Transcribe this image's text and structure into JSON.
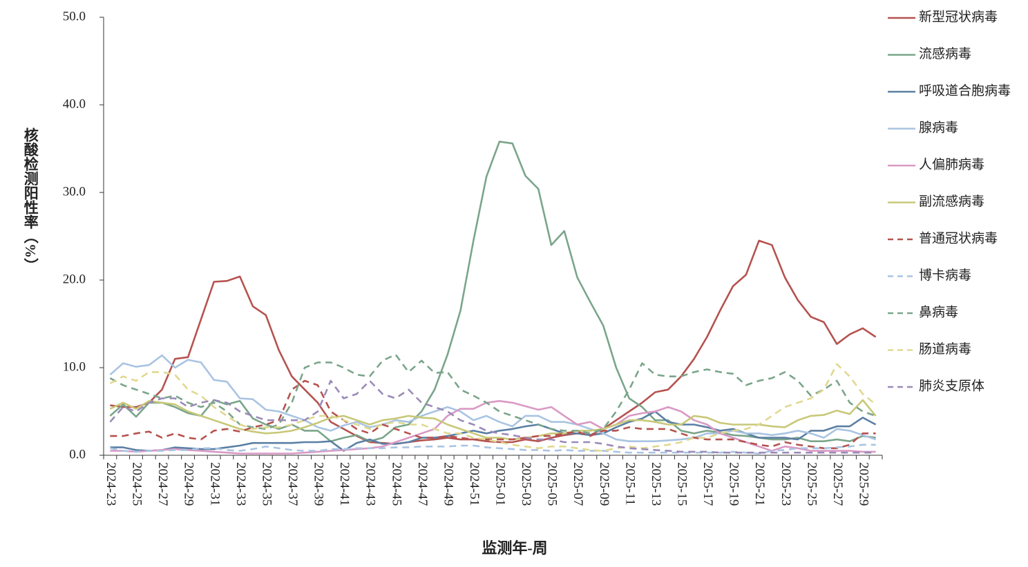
{
  "chart_data": {
    "type": "line",
    "x_label": "监测年-周",
    "y_label": "核酸检测阳性率（%）",
    "categories": [
      "2024-23",
      null,
      "2024-25",
      null,
      "2024-27",
      null,
      "2024-29",
      null,
      "2024-31",
      null,
      "2024-33",
      null,
      "2024-35",
      null,
      "2024-37",
      null,
      "2024-39",
      null,
      "2024-41",
      null,
      "2024-43",
      null,
      "2024-45",
      null,
      "2024-47",
      null,
      "2024-49",
      null,
      "2024-51",
      null,
      "2025-01",
      null,
      "2025-03",
      null,
      "2025-05",
      null,
      "2025-07",
      null,
      "2025-09",
      null,
      "2025-11",
      null,
      "2025-13",
      null,
      "2025-15",
      null,
      "2025-17",
      null,
      "2025-19",
      null,
      "2025-21",
      null,
      "2025-23",
      null,
      "2025-25",
      null,
      "2025-27",
      null,
      "2025-29",
      null
    ],
    "ylim": [
      0,
      50
    ],
    "yticks": [
      {
        "value": 0,
        "label": "0.0"
      },
      {
        "value": 10,
        "label": "10.0"
      },
      {
        "value": 20,
        "label": "20.0"
      },
      {
        "value": 30,
        "label": "30.0"
      },
      {
        "value": 40,
        "label": "40.0"
      },
      {
        "value": 50,
        "label": "50.0"
      }
    ],
    "grid": false,
    "legend": "right",
    "series": [
      {
        "name": "新型冠状病毒",
        "color": "#b5524f",
        "dashed": false,
        "values": [
          5.7,
          5.5,
          5.5,
          6.0,
          7.5,
          11.0,
          11.2,
          15.5,
          19.8,
          19.9,
          20.4,
          17.0,
          16.0,
          12.0,
          9.0,
          7.5,
          6.0,
          3.8,
          3.0,
          2.2,
          1.5,
          1.4,
          1.3,
          1.5,
          1.7,
          1.8,
          2.0,
          1.8,
          1.8,
          1.6,
          1.5,
          1.5,
          1.8,
          1.6,
          2.0,
          2.3,
          2.5,
          2.3,
          3.0,
          4.0,
          5.0,
          6.0,
          7.2,
          7.5,
          9.0,
          11.0,
          13.5,
          16.5,
          19.3,
          20.6,
          24.5,
          24.0,
          20.3,
          17.7,
          15.8,
          15.2,
          12.7,
          13.8,
          14.5,
          13.5
        ]
      },
      {
        "name": "流感病毒",
        "color": "#7aa58a",
        "dashed": false,
        "values": [
          4.5,
          5.8,
          4.4,
          6.0,
          6.0,
          5.5,
          4.8,
          4.5,
          6.3,
          5.8,
          6.2,
          4.2,
          3.5,
          3.0,
          3.5,
          2.8,
          2.8,
          1.6,
          2.0,
          2.3,
          1.6,
          2.0,
          3.2,
          3.5,
          5.0,
          7.5,
          11.5,
          16.5,
          24.5,
          31.8,
          35.8,
          35.6,
          31.9,
          30.4,
          24.0,
          25.6,
          20.3,
          17.5,
          14.8,
          10.0,
          6.5,
          5.5,
          4.0,
          4.0,
          2.8,
          2.5,
          2.8,
          2.6,
          2.3,
          2.2,
          2.0,
          1.8,
          1.8,
          2.0,
          1.6,
          1.6,
          1.8,
          1.6,
          2.2,
          2.0
        ]
      },
      {
        "name": "呼吸道合胞病毒",
        "color": "#5a7fa3",
        "dashed": false,
        "values": [
          0.9,
          0.9,
          0.6,
          0.5,
          0.6,
          0.9,
          0.8,
          0.7,
          0.7,
          0.9,
          1.1,
          1.4,
          1.4,
          1.4,
          1.4,
          1.5,
          1.5,
          1.6,
          0.5,
          1.4,
          1.8,
          1.3,
          1.3,
          1.5,
          2.0,
          2.0,
          2.2,
          2.5,
          2.8,
          2.5,
          2.8,
          3.0,
          3.3,
          3.5,
          3.0,
          2.5,
          2.5,
          2.3,
          2.5,
          3.2,
          3.8,
          4.2,
          5.0,
          3.8,
          3.5,
          3.5,
          3.2,
          2.8,
          3.0,
          2.5,
          2.0,
          2.0,
          2.0,
          1.8,
          2.8,
          2.8,
          3.3,
          3.3,
          4.3,
          3.5
        ]
      },
      {
        "name": "腺病毒",
        "color": "#a9c4e2",
        "dashed": false,
        "values": [
          9.2,
          10.5,
          10.1,
          10.3,
          11.4,
          10.0,
          10.9,
          10.6,
          8.6,
          8.4,
          6.5,
          6.4,
          5.2,
          5.0,
          4.5,
          4.0,
          3.2,
          2.8,
          3.4,
          3.8,
          3.2,
          3.5,
          4.0,
          3.8,
          4.5,
          5.0,
          5.5,
          5.0,
          4.0,
          4.5,
          3.8,
          3.3,
          4.5,
          4.5,
          3.8,
          3.8,
          3.5,
          3.0,
          2.5,
          1.8,
          1.6,
          1.6,
          1.6,
          1.7,
          1.8,
          2.0,
          2.5,
          2.5,
          2.8,
          2.5,
          2.5,
          2.3,
          2.5,
          2.8,
          2.5,
          2.0,
          3.0,
          2.8,
          2.3,
          1.8
        ]
      },
      {
        "name": "人偏肺病毒",
        "color": "#d999c4",
        "dashed": false,
        "values": [
          0.5,
          0.5,
          0.4,
          0.5,
          0.6,
          0.7,
          0.6,
          0.5,
          0.4,
          0.3,
          0.2,
          0.2,
          0.2,
          0.2,
          0.2,
          0.3,
          0.4,
          0.5,
          0.6,
          0.7,
          0.8,
          1.0,
          1.5,
          2.0,
          2.5,
          3.0,
          4.5,
          5.3,
          5.3,
          6.0,
          6.2,
          6.0,
          5.6,
          5.2,
          5.5,
          4.5,
          3.5,
          3.8,
          3.0,
          3.5,
          4.5,
          4.8,
          5.0,
          5.5,
          5.0,
          4.0,
          3.5,
          2.5,
          2.0,
          1.5,
          1.0,
          0.5,
          1.0,
          0.8,
          0.5,
          0.5,
          0.5,
          0.5,
          0.4,
          0.4
        ]
      },
      {
        "name": "副流感病毒",
        "color": "#c8c878",
        "dashed": false,
        "values": [
          5.3,
          6.0,
          5.3,
          6.2,
          6.0,
          5.8,
          5.0,
          4.5,
          4.0,
          3.5,
          3.0,
          2.7,
          2.5,
          2.6,
          2.8,
          3.2,
          3.7,
          4.3,
          4.5,
          4.0,
          3.5,
          4.0,
          4.2,
          4.5,
          4.3,
          4.2,
          3.5,
          3.0,
          2.5,
          2.0,
          2.0,
          1.8,
          2.0,
          2.2,
          2.5,
          2.5,
          2.8,
          2.8,
          3.0,
          3.5,
          4.0,
          4.0,
          3.8,
          3.5,
          3.5,
          4.5,
          4.3,
          3.7,
          3.5,
          3.5,
          3.5,
          3.3,
          3.2,
          4.0,
          4.5,
          4.6,
          5.1,
          4.7,
          6.3,
          4.5
        ]
      },
      {
        "name": "普通冠状病毒",
        "color": "#b5524f",
        "dashed": true,
        "values": [
          2.2,
          2.2,
          2.5,
          2.7,
          2.0,
          2.5,
          2.0,
          1.8,
          2.8,
          3.0,
          2.7,
          3.2,
          3.5,
          4.0,
          7.5,
          8.5,
          8.0,
          5.0,
          4.0,
          3.0,
          2.5,
          3.5,
          3.0,
          2.5,
          2.0,
          2.0,
          2.2,
          2.0,
          1.8,
          1.8,
          1.8,
          1.8,
          2.0,
          2.2,
          2.2,
          2.5,
          2.7,
          2.2,
          2.8,
          2.8,
          3.2,
          3.0,
          3.0,
          3.0,
          2.5,
          2.0,
          1.8,
          1.8,
          1.8,
          1.5,
          1.2,
          1.0,
          1.5,
          1.2,
          1.0,
          0.8,
          0.8,
          1.2,
          2.5,
          2.5
        ]
      },
      {
        "name": "博卡病毒",
        "color": "#a9c4e2",
        "dashed": true,
        "values": [
          0.8,
          0.5,
          0.4,
          0.5,
          0.5,
          0.6,
          0.6,
          0.8,
          0.8,
          0.6,
          0.5,
          0.7,
          1.0,
          0.8,
          0.6,
          0.5,
          0.5,
          0.7,
          0.7,
          0.8,
          0.8,
          0.8,
          0.9,
          0.9,
          1.0,
          1.0,
          1.0,
          1.1,
          1.1,
          0.9,
          0.8,
          0.7,
          0.6,
          0.6,
          0.5,
          0.6,
          0.5,
          0.5,
          0.5,
          0.4,
          0.3,
          0.3,
          0.3,
          0.3,
          0.3,
          0.3,
          0.3,
          0.3,
          0.4,
          0.3,
          0.2,
          0.5,
          0.6,
          0.8,
          0.8,
          0.8,
          0.9,
          1.0,
          1.2,
          1.2
        ]
      },
      {
        "name": "鼻病毒",
        "color": "#7aa58a",
        "dashed": true,
        "values": [
          8.8,
          8.0,
          7.5,
          7.0,
          6.5,
          6.8,
          6.0,
          5.5,
          6.0,
          5.0,
          3.5,
          3.2,
          3.0,
          3.5,
          6.0,
          10.0,
          10.6,
          10.6,
          10.0,
          9.2,
          9.0,
          10.8,
          11.5,
          9.5,
          10.8,
          9.4,
          9.5,
          7.5,
          6.8,
          6.0,
          5.0,
          4.5,
          4.0,
          3.5,
          3.0,
          2.8,
          2.8,
          2.5,
          3.0,
          5.0,
          7.5,
          10.5,
          9.2,
          9.0,
          9.0,
          9.5,
          9.8,
          9.5,
          9.3,
          8.0,
          8.5,
          8.8,
          9.5,
          8.5,
          6.8,
          7.5,
          8.5,
          6.0,
          5.0,
          4.5
        ]
      },
      {
        "name": "肠道病毒",
        "color": "#e0d890",
        "dashed": true,
        "values": [
          8.2,
          9.0,
          8.5,
          9.5,
          9.5,
          9.2,
          7.5,
          6.8,
          5.5,
          4.5,
          3.5,
          3.0,
          3.2,
          3.2,
          3.5,
          4.0,
          4.5,
          4.5,
          4.0,
          3.5,
          3.0,
          3.5,
          3.8,
          3.5,
          3.5,
          3.0,
          2.5,
          2.5,
          2.0,
          1.8,
          1.5,
          1.2,
          1.0,
          0.8,
          1.0,
          1.0,
          0.8,
          0.6,
          0.5,
          0.8,
          1.0,
          0.8,
          1.0,
          1.2,
          1.5,
          2.0,
          2.0,
          2.5,
          2.8,
          3.0,
          3.5,
          4.5,
          5.5,
          6.0,
          6.5,
          7.5,
          10.4,
          9.0,
          7.0,
          5.8
        ]
      },
      {
        "name": "肺炎支原体",
        "color": "#9a8ab8",
        "dashed": true,
        "values": [
          3.8,
          5.5,
          5.0,
          6.0,
          6.5,
          6.5,
          5.5,
          6.0,
          6.3,
          6.0,
          5.0,
          4.5,
          4.0,
          4.0,
          4.0,
          4.0,
          5.0,
          8.5,
          6.5,
          7.0,
          8.5,
          7.0,
          6.5,
          7.5,
          6.0,
          5.5,
          5.0,
          4.0,
          3.5,
          2.8,
          2.5,
          2.3,
          2.0,
          1.8,
          1.8,
          1.5,
          1.5,
          1.5,
          1.3,
          1.0,
          0.8,
          0.7,
          0.6,
          0.5,
          0.4,
          0.4,
          0.4,
          0.3,
          0.3,
          0.3,
          0.3,
          0.3,
          0.3,
          0.3,
          0.3,
          0.3,
          0.3,
          0.3,
          0.3,
          0.3
        ]
      }
    ]
  }
}
